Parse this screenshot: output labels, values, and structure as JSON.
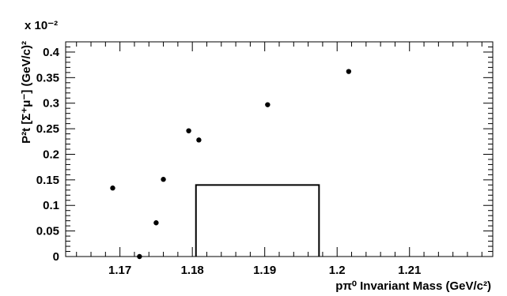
{
  "chart_data": {
    "type": "scatter",
    "title": "",
    "xlabel": "pπ⁰ Invariant Mass (GeV/c²)",
    "ylabel": "P²t [Σ⁺μ⁻] (GeV/c)²",
    "y_multiplier": "x 10⁻²",
    "xlim": [
      1.1625,
      1.2215
    ],
    "ylim": [
      0,
      0.42
    ],
    "x_ticks": [
      1.17,
      1.18,
      1.19,
      1.2,
      1.21
    ],
    "x_tick_labels": [
      "1.17",
      "1.18",
      "1.19",
      "1.2",
      "1.21"
    ],
    "y_ticks": [
      0,
      0.05,
      0.1,
      0.15,
      0.2,
      0.25,
      0.3,
      0.35,
      0.4
    ],
    "y_tick_labels": [
      "0",
      "0.05",
      "0.1",
      "0.15",
      "0.2",
      "0.25",
      "0.3",
      "0.35",
      "0.4"
    ],
    "grid": false,
    "points": [
      {
        "x": 1.169,
        "y": 0.134
      },
      {
        "x": 1.1727,
        "y": 0.0
      },
      {
        "x": 1.175,
        "y": 0.066
      },
      {
        "x": 1.176,
        "y": 0.151
      },
      {
        "x": 1.1795,
        "y": 0.246
      },
      {
        "x": 1.1809,
        "y": 0.228
      },
      {
        "x": 1.1904,
        "y": 0.297
      },
      {
        "x": 1.2016,
        "y": 0.362
      }
    ],
    "signal_box": {
      "x_min": 1.1805,
      "x_max": 1.1975,
      "y_min": 0,
      "y_max": 0.14
    }
  }
}
